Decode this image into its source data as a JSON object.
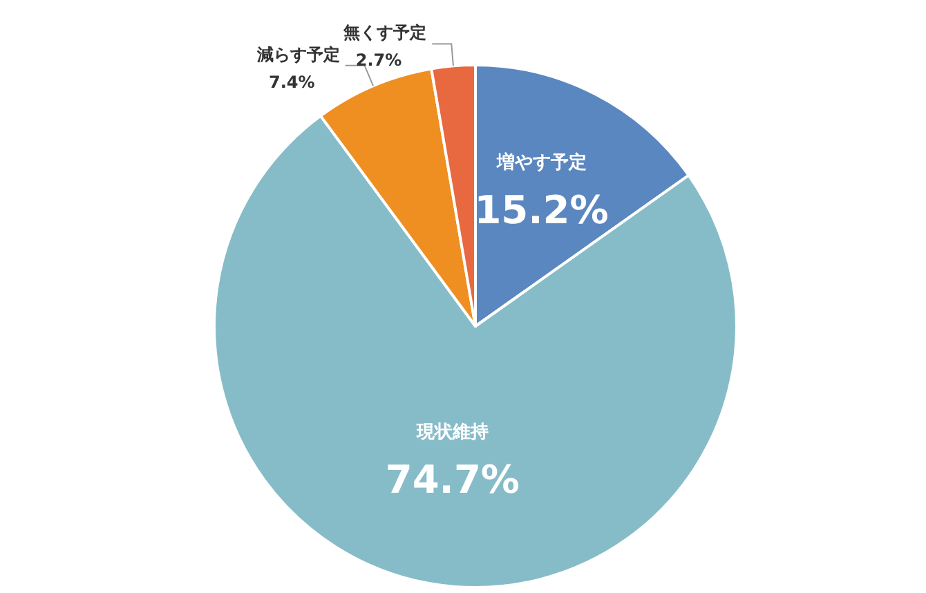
{
  "chart_data": {
    "type": "pie",
    "categories": [
      "増やす予定",
      "現状維持",
      "減らす予定",
      "無くす予定"
    ],
    "values": [
      15.2,
      74.7,
      7.4,
      2.7
    ],
    "colors": [
      "#5b87c0",
      "#86bcc8",
      "#ef8f22",
      "#e8693f"
    ],
    "value_labels": [
      "15.2%",
      "74.7%",
      "7.4%",
      "2.7%"
    ]
  }
}
